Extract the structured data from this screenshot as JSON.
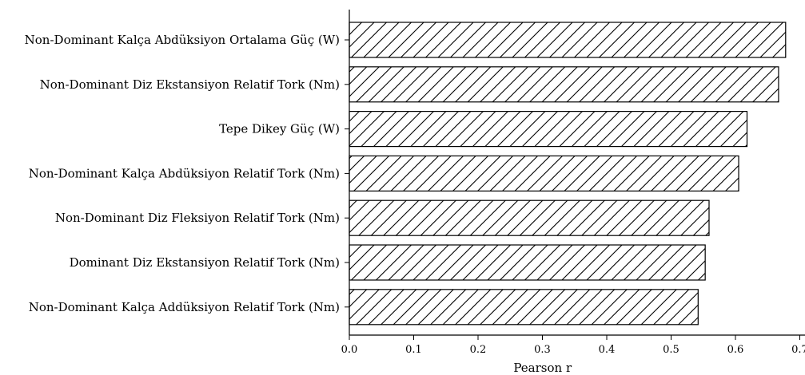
{
  "chart_data": {
    "type": "bar",
    "orientation": "horizontal",
    "categories": [
      "Non-Dominant Kalça Abdüksiyon Ortalama Güç (W)",
      "Non-Dominant Diz Ekstansiyon Relatif Tork (Nm)",
      "Tepe Dikey Güç (W)",
      "Non-Dominant Kalça Abdüksiyon Relatif Tork (Nm)",
      "Non-Dominant Diz Fleksiyon Relatif Tork (Nm)",
      "Dominant Diz Ekstansiyon Relatif Tork (Nm)",
      "Non-Dominant Kalça Addüksiyon Relatif Tork (Nm)"
    ],
    "values": [
      0.678,
      0.667,
      0.618,
      0.605,
      0.559,
      0.553,
      0.542
    ],
    "xlabel": "Pearson r",
    "ylabel": "",
    "title": "",
    "xlim": [
      0.0,
      0.7
    ],
    "xticks": [
      "0.0",
      "0.1",
      "0.2",
      "0.3",
      "0.4",
      "0.5",
      "0.6",
      "0.7"
    ],
    "bar_fill": "#ffffff",
    "bar_edge": "#000000",
    "hatch": "diagonal",
    "grid": false
  }
}
